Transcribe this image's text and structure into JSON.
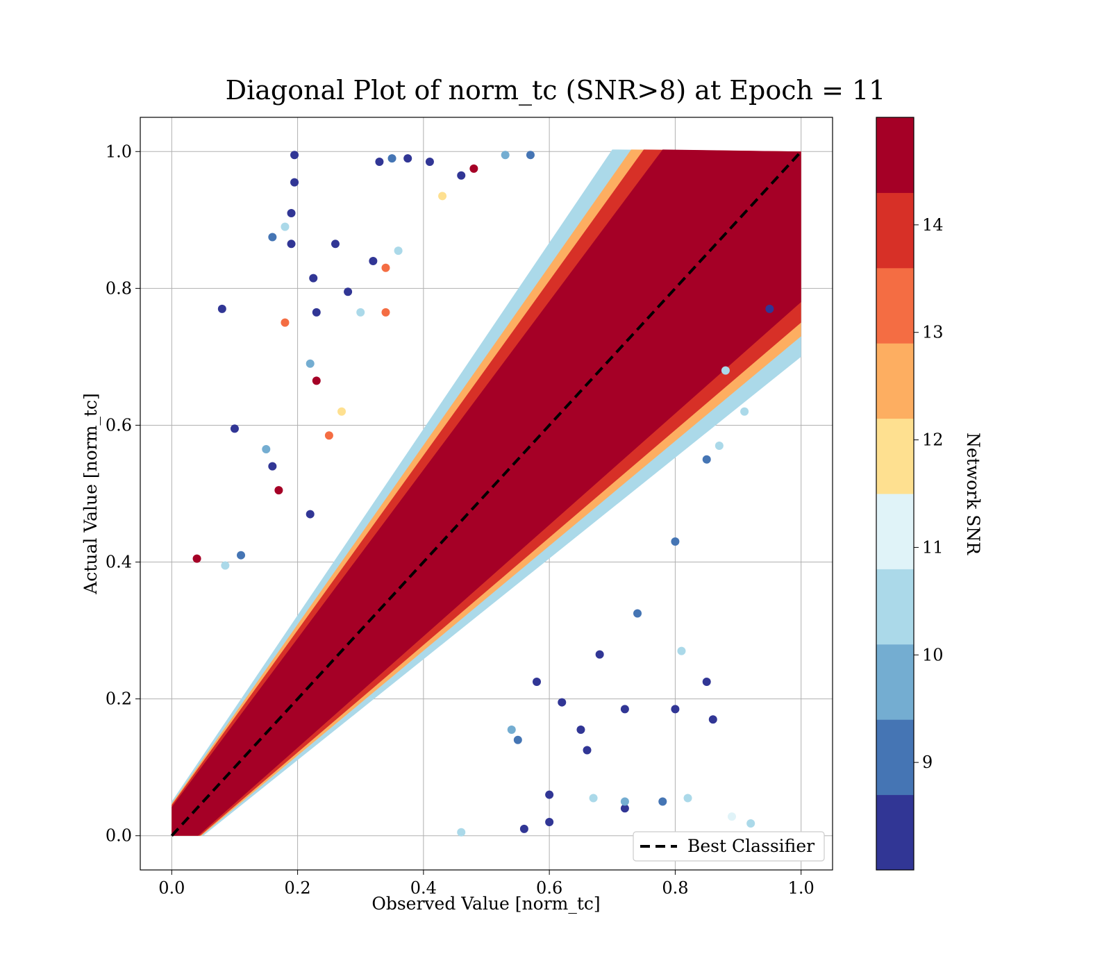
{
  "chart_data": {
    "type": "scatter",
    "title": "Diagonal Plot of norm_tc (SNR>8) at Epoch = 11",
    "xlabel": "Observed Value [norm_tc]",
    "ylabel": "Actual Value [norm_tc]",
    "xlim": [
      -0.05,
      1.05
    ],
    "ylim": [
      -0.05,
      1.05
    ],
    "xticks": [
      0.0,
      0.2,
      0.4,
      0.6,
      0.8,
      1.0
    ],
    "yticks": [
      0.0,
      0.2,
      0.4,
      0.6,
      0.8,
      1.0
    ],
    "xtick_labels": [
      "0.0",
      "0.2",
      "0.4",
      "0.6",
      "0.8",
      "1.0"
    ],
    "ytick_labels": [
      "0.0",
      "0.2",
      "0.4",
      "0.6",
      "0.8",
      "1.0"
    ],
    "grid": true,
    "reference_line": {
      "label": "Best Classifier",
      "x": [
        0.0,
        1.0
      ],
      "y": [
        0.0,
        1.0
      ],
      "style": "dashed",
      "color": "#000000"
    },
    "legend": {
      "position": "lower-right",
      "entries": [
        "Best Classifier"
      ]
    },
    "colorbar": {
      "label": "Network SNR",
      "range": [
        8,
        15
      ],
      "ticks": [
        9,
        10,
        11,
        12,
        13,
        14
      ],
      "tick_labels": [
        "9",
        "10",
        "11",
        "12",
        "13",
        "14"
      ],
      "colors": [
        "#313695",
        "#4575b4",
        "#74add1",
        "#abd9e9",
        "#e0f3f8",
        "#fee090",
        "#fdae61",
        "#f46d43",
        "#d73027",
        "#a50026"
      ]
    },
    "points_note_color_by": "Network SNR",
    "points": [
      {
        "x": 0.195,
        "y": 0.995,
        "snr": 8.2
      },
      {
        "x": 0.19,
        "y": 0.91,
        "snr": 8.3
      },
      {
        "x": 0.195,
        "y": 0.955,
        "snr": 8.5
      },
      {
        "x": 0.18,
        "y": 0.89,
        "snr": 10.4
      },
      {
        "x": 0.08,
        "y": 0.77,
        "snr": 8.2
      },
      {
        "x": 0.18,
        "y": 0.75,
        "snr": 13.2
      },
      {
        "x": 0.04,
        "y": 0.405,
        "snr": 14.8
      },
      {
        "x": 0.1,
        "y": 0.595,
        "snr": 8.3
      },
      {
        "x": 0.16,
        "y": 0.875,
        "snr": 9.0
      },
      {
        "x": 0.19,
        "y": 0.865,
        "snr": 8.4
      },
      {
        "x": 0.225,
        "y": 0.815,
        "snr": 8.3
      },
      {
        "x": 0.23,
        "y": 0.765,
        "snr": 8.2
      },
      {
        "x": 0.28,
        "y": 0.795,
        "snr": 8.4
      },
      {
        "x": 0.26,
        "y": 0.865,
        "snr": 8.6
      },
      {
        "x": 0.33,
        "y": 0.985,
        "snr": 8.3
      },
      {
        "x": 0.35,
        "y": 0.99,
        "snr": 8.8
      },
      {
        "x": 0.375,
        "y": 0.99,
        "snr": 8.4
      },
      {
        "x": 0.41,
        "y": 0.985,
        "snr": 8.2
      },
      {
        "x": 0.57,
        "y": 0.995,
        "snr": 9.2
      },
      {
        "x": 0.53,
        "y": 0.995,
        "snr": 9.8
      },
      {
        "x": 0.46,
        "y": 0.965,
        "snr": 8.3
      },
      {
        "x": 0.48,
        "y": 0.975,
        "snr": 14.6
      },
      {
        "x": 0.22,
        "y": 0.69,
        "snr": 9.6
      },
      {
        "x": 0.23,
        "y": 0.665,
        "snr": 14.3
      },
      {
        "x": 0.085,
        "y": 0.395,
        "snr": 10.6
      },
      {
        "x": 0.11,
        "y": 0.41,
        "snr": 9.0
      },
      {
        "x": 0.17,
        "y": 0.505,
        "snr": 14.7
      },
      {
        "x": 0.16,
        "y": 0.54,
        "snr": 8.4
      },
      {
        "x": 0.15,
        "y": 0.565,
        "snr": 9.6
      },
      {
        "x": 0.25,
        "y": 0.585,
        "snr": 13.2
      },
      {
        "x": 0.22,
        "y": 0.47,
        "snr": 8.3
      },
      {
        "x": 0.27,
        "y": 0.62,
        "snr": 12.1
      },
      {
        "x": 0.54,
        "y": 0.155,
        "snr": 10.1
      },
      {
        "x": 0.58,
        "y": 0.225,
        "snr": 8.5
      },
      {
        "x": 0.62,
        "y": 0.195,
        "snr": 8.3
      },
      {
        "x": 0.65,
        "y": 0.155,
        "snr": 8.4
      },
      {
        "x": 0.66,
        "y": 0.125,
        "snr": 8.2
      },
      {
        "x": 0.68,
        "y": 0.265,
        "snr": 8.3
      },
      {
        "x": 0.72,
        "y": 0.185,
        "snr": 8.7
      },
      {
        "x": 0.72,
        "y": 0.04,
        "snr": 8.4
      },
      {
        "x": 0.72,
        "y": 0.05,
        "snr": 9.4
      },
      {
        "x": 0.67,
        "y": 0.055,
        "snr": 10.4
      },
      {
        "x": 0.6,
        "y": 0.06,
        "snr": 8.3
      },
      {
        "x": 0.6,
        "y": 0.02,
        "snr": 8.5
      },
      {
        "x": 0.56,
        "y": 0.01,
        "snr": 8.3
      },
      {
        "x": 0.46,
        "y": 0.005,
        "snr": 10.3
      },
      {
        "x": 0.74,
        "y": 0.325,
        "snr": 9.0
      },
      {
        "x": 0.81,
        "y": 0.27,
        "snr": 10.2
      },
      {
        "x": 0.85,
        "y": 0.225,
        "snr": 8.3
      },
      {
        "x": 0.86,
        "y": 0.17,
        "snr": 8.4
      },
      {
        "x": 0.8,
        "y": 0.185,
        "snr": 8.3
      },
      {
        "x": 0.78,
        "y": 0.05,
        "snr": 9.2
      },
      {
        "x": 0.82,
        "y": 0.055,
        "snr": 10.2
      },
      {
        "x": 0.89,
        "y": 0.028,
        "snr": 11.2
      },
      {
        "x": 0.92,
        "y": 0.018,
        "snr": 10.4
      },
      {
        "x": 0.8,
        "y": 0.43,
        "snr": 9.2
      },
      {
        "x": 0.85,
        "y": 0.55,
        "snr": 9.3
      },
      {
        "x": 0.87,
        "y": 0.57,
        "snr": 10.2
      },
      {
        "x": 0.91,
        "y": 0.62,
        "snr": 10.3
      },
      {
        "x": 0.88,
        "y": 0.68,
        "snr": 10.4
      },
      {
        "x": 0.95,
        "y": 0.77,
        "snr": 8.3
      },
      {
        "x": 0.55,
        "y": 0.14,
        "snr": 9.2
      },
      {
        "x": 0.3,
        "y": 0.765,
        "snr": 10.4
      },
      {
        "x": 0.34,
        "y": 0.765,
        "snr": 13.1
      },
      {
        "x": 0.34,
        "y": 0.83,
        "snr": 13.0
      },
      {
        "x": 0.32,
        "y": 0.84,
        "snr": 8.6
      },
      {
        "x": 0.36,
        "y": 0.855,
        "snr": 10.6
      },
      {
        "x": 0.43,
        "y": 0.935,
        "snr": 12.2
      }
    ]
  }
}
